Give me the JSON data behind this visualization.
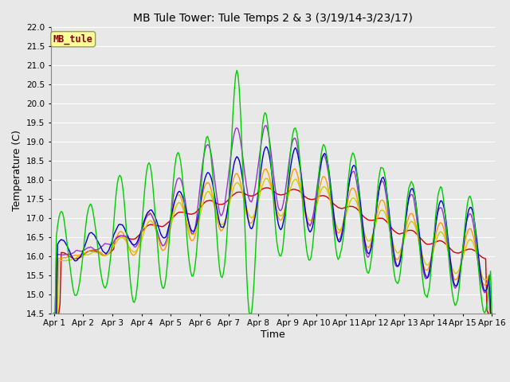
{
  "title": "MB Tule Tower: Tule Temps 2 & 3 (3/19/14-3/23/17)",
  "xlabel": "Time",
  "ylabel": "Temperature (C)",
  "ylim": [
    14.5,
    22.0
  ],
  "yticks": [
    14.5,
    15.0,
    15.5,
    16.0,
    16.5,
    17.0,
    17.5,
    18.0,
    18.5,
    19.0,
    19.5,
    20.0,
    20.5,
    21.0,
    21.5,
    22.0
  ],
  "xtick_labels": [
    "Apr 1",
    "Apr 2",
    "Apr 3",
    "Apr 4",
    "Apr 5",
    "Apr 6",
    "Apr 7",
    "Apr 8",
    "Apr 9",
    "Apr 10",
    "Apr 11",
    "Apr 12",
    "Apr 13",
    "Apr 14",
    "Apr 15",
    "Apr 16"
  ],
  "series_colors": {
    "Tul2_Ts-8": "#cc0000",
    "Tul2_Ts0": "#0000cc",
    "Tul2_Tw+10": "#00cc00",
    "Tul3_Ts-8": "#ff9900",
    "Tul3_Ts0": "#cccc00",
    "Tul3_Tw+10": "#9933cc"
  },
  "legend_label": "MB_tule",
  "bg_color": "#e8e8e8",
  "plot_bg": "#e8e8e8",
  "grid_color": "#ffffff",
  "annotation_box_color": "#ffff99",
  "annotation_text_color": "#880000"
}
